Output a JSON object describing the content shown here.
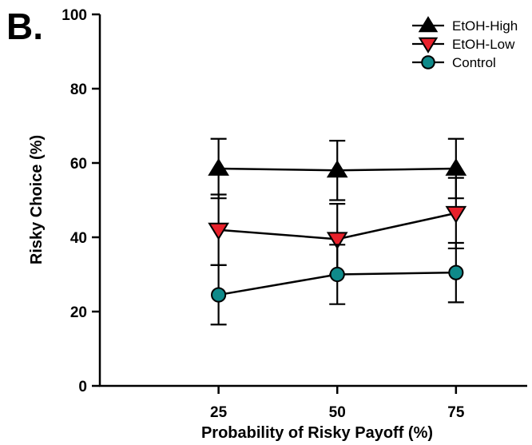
{
  "panel_label": "B.",
  "chart_data": {
    "type": "line",
    "xlabel": "Probability of Risky Payoff (%)",
    "ylabel": "Risky Choice (%)",
    "x": [
      25,
      50,
      75
    ],
    "xlim": [
      0,
      90
    ],
    "ylim": [
      0,
      100
    ],
    "yticks": [
      0,
      20,
      40,
      60,
      80,
      100
    ],
    "xticks": [
      25,
      50,
      75
    ],
    "legend_position": "top-right",
    "grid": false,
    "series": [
      {
        "name": "EtOH-High",
        "marker": "triangle-up",
        "color": "#000000",
        "values": [
          58.5,
          58.0,
          58.5
        ],
        "error": [
          8.0,
          8.0,
          8.0
        ]
      },
      {
        "name": "EtOH-Low",
        "marker": "triangle-down",
        "color": "#e8212b",
        "values": [
          42.0,
          39.5,
          46.5
        ],
        "error": [
          9.5,
          9.5,
          9.5
        ]
      },
      {
        "name": "Control",
        "marker": "circle",
        "color": "#0f8a8a",
        "values": [
          24.5,
          30.0,
          30.5
        ],
        "error": [
          8.0,
          8.0,
          8.0
        ]
      }
    ]
  }
}
